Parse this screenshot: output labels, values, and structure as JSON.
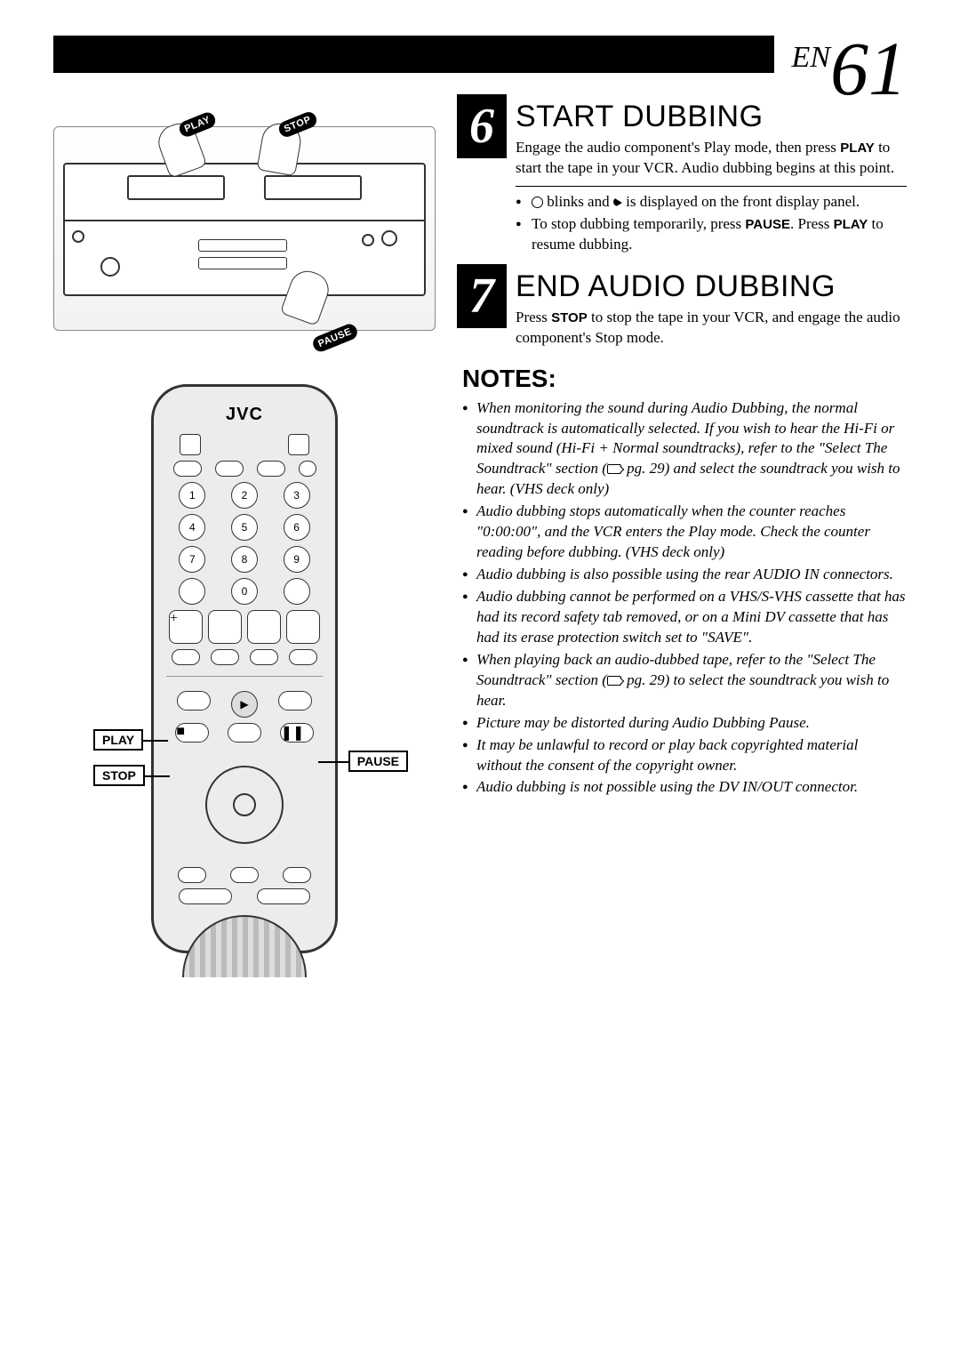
{
  "page": {
    "prefix": "EN",
    "number": "61"
  },
  "vcr_callouts": {
    "play": "PLAY",
    "stop": "STOP",
    "pause": "PAUSE"
  },
  "remote": {
    "brand": "JVC",
    "numbers": [
      "1",
      "2",
      "3",
      "4",
      "5",
      "6",
      "7",
      "8",
      "9",
      "0"
    ],
    "labels": {
      "play": "PLAY",
      "stop": "STOP",
      "pause": "PAUSE"
    }
  },
  "step6": {
    "num": "6",
    "title": "START DUBBING",
    "body_pre": "Engage the audio component's Play mode, then press ",
    "play": "PLAY",
    "body_post": " to start the tape in your VCR. Audio dubbing begins at this point.",
    "bullet1_pre": " blinks and ",
    "bullet1_post": " is displayed on the front display panel.",
    "bullet2_pre": "To stop dubbing temporarily, press ",
    "pause": "PAUSE",
    "bullet2_mid": ". Press ",
    "play2": "PLAY",
    "bullet2_post": " to resume dubbing."
  },
  "step7": {
    "num": "7",
    "title": "END AUDIO DUBBING",
    "body_pre": "Press ",
    "stop": "STOP",
    "body_post": " to stop the tape in your VCR, and engage the audio component's Stop mode."
  },
  "notes": {
    "title": "NOTES:",
    "items": [
      {
        "pre": "When monitoring the sound during Audio Dubbing, the normal soundtrack is automatically selected. If you wish to hear the Hi-Fi or mixed sound (Hi-Fi + Normal soundtracks), refer to the \"Select The Soundtrack\" section (",
        "pg": "pg. 29",
        "post": ") and select the soundtrack you wish to hear. (VHS deck only)"
      },
      {
        "pre": "Audio dubbing stops automatically when the counter reaches \"0:00:00\", and the VCR enters the Play mode. Check the counter reading before dubbing. (VHS deck only)",
        "pg": "",
        "post": ""
      },
      {
        "pre": "Audio dubbing is also possible using the rear AUDIO IN connectors.",
        "pg": "",
        "post": ""
      },
      {
        "pre": "Audio dubbing cannot be performed on a VHS/S-VHS cassette that has had its record safety tab removed, or on a Mini DV cassette that has had its erase protection switch set to \"SAVE\".",
        "pg": "",
        "post": ""
      },
      {
        "pre": "When playing back an audio-dubbed tape, refer to the \"Select The Soundtrack\" section (",
        "pg": "pg. 29",
        "post": ") to select the soundtrack you wish to hear."
      },
      {
        "pre": "Picture may be distorted during Audio Dubbing Pause.",
        "pg": "",
        "post": ""
      },
      {
        "pre": "It may be unlawful to record or play back copyrighted material without the consent of the copyright owner.",
        "pg": "",
        "post": ""
      },
      {
        "pre": "Audio dubbing is not possible using the DV IN/OUT connector.",
        "pg": "",
        "post": ""
      }
    ]
  }
}
